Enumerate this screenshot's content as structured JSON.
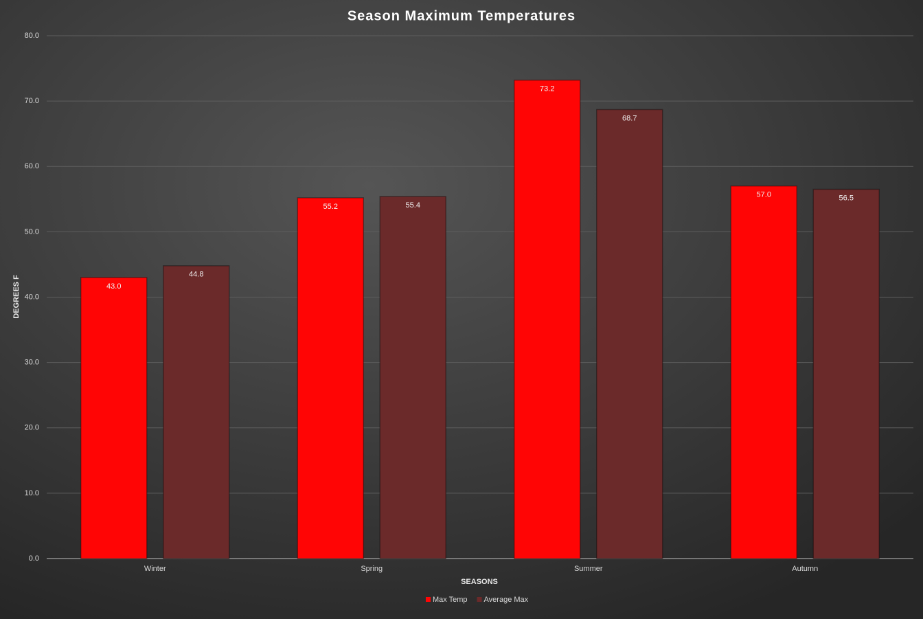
{
  "chart_data": {
    "type": "bar",
    "title": "Season Maximum Temperatures",
    "x_label": "SEASONS",
    "y_label": "DEGREES F",
    "categories": [
      "Winter",
      "Spring",
      "Summer",
      "Autumn"
    ],
    "series": [
      {
        "name": "Max Temp",
        "color": "#ff0505",
        "values": [
          43.0,
          55.2,
          73.2,
          57.0
        ],
        "value_labels": [
          "43.0",
          "55.2",
          "73.2",
          "57.0"
        ]
      },
      {
        "name": "Average Max",
        "color": "#6b2a2a",
        "values": [
          44.8,
          55.4,
          68.7,
          56.5
        ],
        "value_labels": [
          "44.8",
          "55.4",
          "68.7",
          "56.5"
        ]
      }
    ],
    "ylim": [
      0,
      80
    ],
    "yticks": [
      {
        "value": 0,
        "label": "0.0"
      },
      {
        "value": 10,
        "label": "10.0"
      },
      {
        "value": 20,
        "label": "20.0"
      },
      {
        "value": 30,
        "label": "30.0"
      },
      {
        "value": 40,
        "label": "40.0"
      },
      {
        "value": 50,
        "label": "50.0"
      },
      {
        "value": 60,
        "label": "60.0"
      },
      {
        "value": 70,
        "label": "70.0"
      },
      {
        "value": 80,
        "label": "80.0"
      }
    ],
    "grid": true,
    "legend": "bottom"
  }
}
